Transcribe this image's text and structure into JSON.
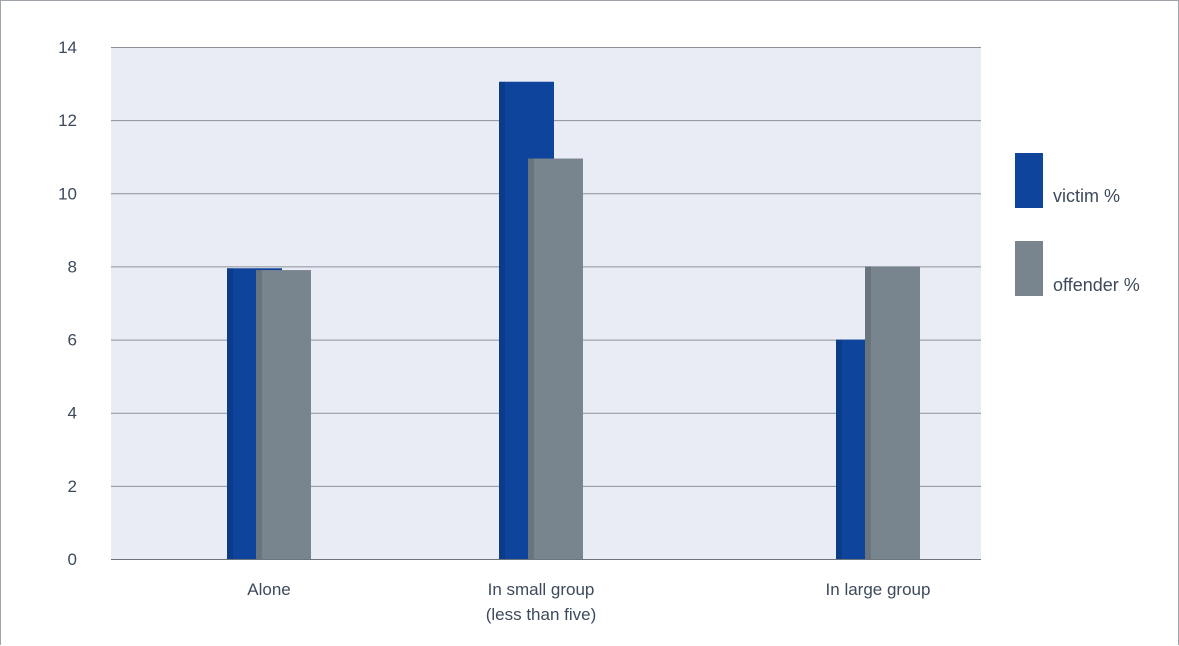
{
  "chart_data": {
    "type": "bar",
    "title": "",
    "xlabel": "",
    "ylabel": "",
    "ylim": [
      0,
      14
    ],
    "yticks": [
      0,
      2,
      4,
      6,
      8,
      10,
      12,
      14
    ],
    "grid": true,
    "legend_position": "right",
    "categories": [
      [
        "Alone"
      ],
      [
        "In small group",
        "(less than five)"
      ],
      [
        "In large group"
      ]
    ],
    "series": [
      {
        "name": "victim %",
        "color": "#0e449b",
        "values": [
          7.95,
          13.05,
          6.0
        ]
      },
      {
        "name": "offender %",
        "color": "#78848e",
        "values": [
          7.9,
          10.95,
          8.0
        ]
      }
    ],
    "plot_background": "#eaecf5",
    "gridline_color": "#8a9096"
  }
}
